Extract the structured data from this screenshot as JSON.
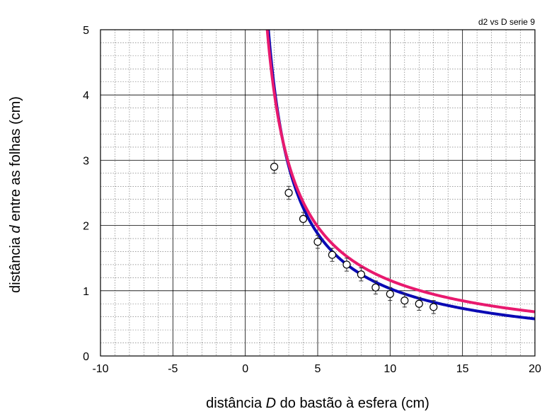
{
  "chart_data": {
    "type": "scatter",
    "title": "d2 vs D serie 9",
    "xlabel_parts": [
      "distância ",
      "D",
      " do bastão à esfera (cm)"
    ],
    "ylabel_parts": [
      "distância ",
      "d",
      " entre as folhas (cm)"
    ],
    "xlim": [
      -10,
      20
    ],
    "ylim": [
      0,
      5
    ],
    "x_ticks": [
      -10,
      -5,
      0,
      5,
      10,
      15,
      20
    ],
    "x_tick_labels": [
      "-10",
      "-5",
      "0",
      "5",
      "10",
      "15",
      "20"
    ],
    "y_ticks": [
      0,
      1,
      2,
      3,
      4,
      5
    ],
    "y_tick_labels": [
      "0",
      "1",
      "2",
      "3",
      "4",
      "5"
    ],
    "grid": "major and minor",
    "legend": "none",
    "series": [
      {
        "kind": "points",
        "marker": "open circle",
        "x": [
          2,
          3,
          4,
          5,
          6,
          7,
          8,
          9,
          10,
          11,
          12,
          13
        ],
        "y": [
          2.9,
          2.5,
          2.1,
          1.75,
          1.55,
          1.4,
          1.25,
          1.05,
          0.95,
          0.85,
          0.8,
          0.75
        ],
        "error": [
          0.1,
          0.1,
          0.1,
          0.1,
          0.1,
          0.1,
          0.1,
          0.1,
          0.1,
          0.1,
          0.1,
          0.1
        ]
      },
      {
        "kind": "fit-curve",
        "color": "#0a0ab4",
        "model": "y = a * x^b",
        "a": 7.48,
        "b": -0.86,
        "x_start": 1.08,
        "x_end": 20
      },
      {
        "kind": "fit-curve",
        "color": "#e8196e",
        "model": "y = a * x^b",
        "a": 6.9,
        "b": -0.775,
        "x_start": 1.2,
        "x_end": 20
      }
    ]
  }
}
